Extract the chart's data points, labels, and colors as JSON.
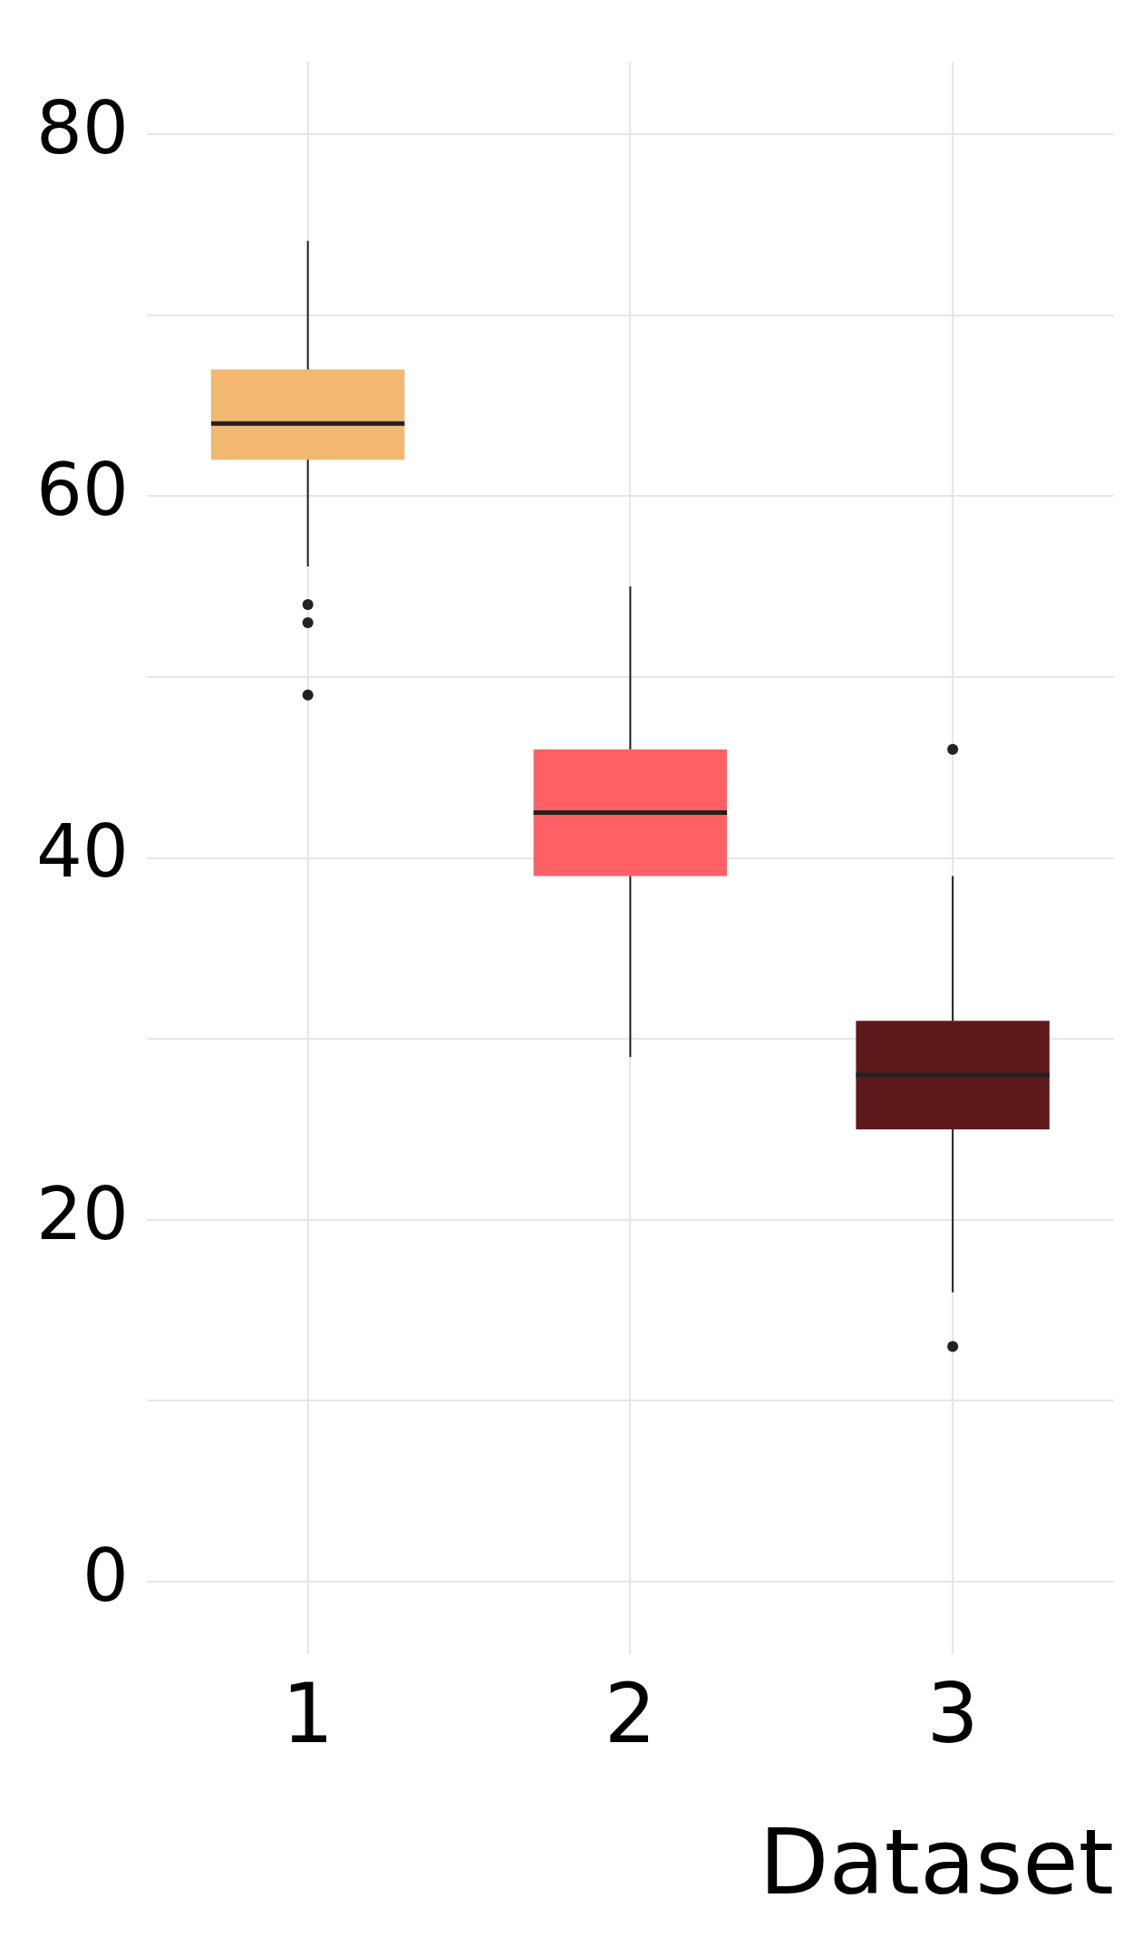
{
  "chart_data": {
    "type": "box",
    "xlabel": "Dataset",
    "categories": [
      "1",
      "2",
      "3"
    ],
    "colors": [
      "#f2b872",
      "#ff6066",
      "#5e1a1a"
    ],
    "boxes": [
      {
        "low": 56.1,
        "q1": 62,
        "median": 64,
        "q3": 67,
        "high": 74.1,
        "outliers": [
          54,
          53,
          49
        ]
      },
      {
        "low": 29,
        "q1": 39,
        "median": 42.5,
        "q3": 46,
        "high": 55
      },
      {
        "low": 16,
        "q1": 25,
        "median": 28,
        "q3": 31,
        "high": 39,
        "outliers": [
          46,
          13
        ]
      }
    ],
    "ylim": [
      -4,
      84
    ],
    "yticks": [
      0,
      {
        "value": 10,
        "label": null
      },
      20,
      {
        "value": 30,
        "label": null
      },
      40,
      {
        "value": 50,
        "label": null
      },
      60,
      {
        "value": 70,
        "label": null
      },
      80
    ],
    "grid": true,
    "legend": false
  }
}
